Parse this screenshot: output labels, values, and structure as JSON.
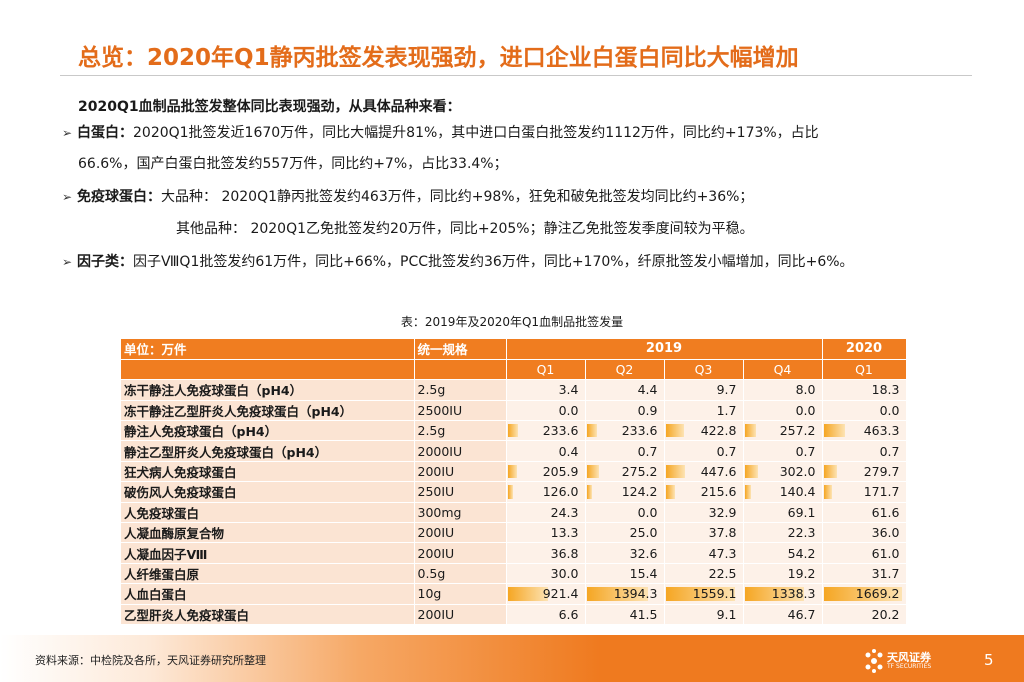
{
  "title": "总览：2020年Q1静丙批签发表现强劲，进口企业白蛋白同比大幅增加",
  "intro": "2020Q1血制品批签发整体同比表现强劲，从具体品种来看：",
  "bullets": [
    {
      "label": "白蛋白：",
      "text": "2020Q1批签发近1670万件，同比大幅提升81%，其中进口白蛋白批签发约1112万件，同比约+173%，占比",
      "cont": "66.6%，国产白蛋白批签发约557万件，同比约+7%，占比33.4%；"
    },
    {
      "label": "免疫球蛋白：",
      "text": "大品种： 2020Q1静丙批签发约463万件，同比约+98%，狂免和破免批签发均同比约+36%；",
      "cont": "其他品种： 2020Q1乙免批签发约20万件，同比+205%；静注乙免批签发季度间较为平稳。"
    },
    {
      "label": "因子类：",
      "text": "因子ⅧQ1批签发约61万件，同比+66%，PCC批签发约36万件，同比+170%，纤原批签发小幅增加，同比+6%。"
    }
  ],
  "caption": "表：2019年及2020年Q1血制品批签发量",
  "table": {
    "header": {
      "unit": "单位：万件",
      "spec": "统一规格",
      "year2019": "2019",
      "year2020": "2020",
      "quarters": [
        "Q1",
        "Q2",
        "Q3",
        "Q4",
        "Q1"
      ]
    },
    "rows": [
      {
        "name": "冻干静注人免疫球蛋白（pH4）",
        "spec": "2.5g",
        "values": [
          "3.4",
          "4.4",
          "9.7",
          "8.0",
          "18.3"
        ],
        "v": [
          3.4,
          4.4,
          9.7,
          8.0,
          18.3
        ]
      },
      {
        "name": "冻干静注乙型肝炎人免疫球蛋白（pH4）",
        "spec": "2500IU",
        "values": [
          "0.0",
          "0.9",
          "1.7",
          "0.0",
          "0.0"
        ],
        "v": [
          0.0,
          0.9,
          1.7,
          0.0,
          0.0
        ]
      },
      {
        "name": "静注人免疫球蛋白（pH4）",
        "spec": "2.5g",
        "values": [
          "233.6",
          "233.6",
          "422.8",
          "257.2",
          "463.3"
        ],
        "v": [
          233.6,
          233.6,
          422.8,
          257.2,
          463.3
        ]
      },
      {
        "name": "静注乙型肝炎人免疫球蛋白（pH4）",
        "spec": "2000IU",
        "values": [
          "0.4",
          "0.7",
          "0.7",
          "0.7",
          "0.7"
        ],
        "v": [
          0.4,
          0.7,
          0.7,
          0.7,
          0.7
        ]
      },
      {
        "name": "狂犬病人免疫球蛋白",
        "spec": "200IU",
        "values": [
          "205.9",
          "275.2",
          "447.6",
          "302.0",
          "279.7"
        ],
        "v": [
          205.9,
          275.2,
          447.6,
          302.0,
          279.7
        ]
      },
      {
        "name": "破伤风人免疫球蛋白",
        "spec": "250IU",
        "values": [
          "126.0",
          "124.2",
          "215.6",
          "140.4",
          "171.7"
        ],
        "v": [
          126.0,
          124.2,
          215.6,
          140.4,
          171.7
        ]
      },
      {
        "name": "人免疫球蛋白",
        "spec": "300mg",
        "values": [
          "24.3",
          "0.0",
          "32.9",
          "69.1",
          "61.6"
        ],
        "v": [
          24.3,
          0.0,
          32.9,
          69.1,
          61.6
        ]
      },
      {
        "name": "人凝血酶原复合物",
        "spec": "200IU",
        "values": [
          "13.3",
          "25.0",
          "37.8",
          "22.3",
          "36.0"
        ],
        "v": [
          13.3,
          25.0,
          37.8,
          22.3,
          36.0
        ]
      },
      {
        "name": "人凝血因子Ⅷ",
        "spec": "200IU",
        "values": [
          "36.8",
          "32.6",
          "47.3",
          "54.2",
          "61.0"
        ],
        "v": [
          36.8,
          32.6,
          47.3,
          54.2,
          61.0
        ]
      },
      {
        "name": "人纤维蛋白原",
        "spec": "0.5g",
        "values": [
          "30.0",
          "15.4",
          "22.5",
          "19.2",
          "31.7"
        ],
        "v": [
          30.0,
          15.4,
          22.5,
          19.2,
          31.7
        ]
      },
      {
        "name": "人血白蛋白",
        "spec": "10g",
        "values": [
          "921.4",
          "1394.3",
          "1559.1",
          "1338.3",
          "1669.2"
        ],
        "v": [
          921.4,
          1394.3,
          1559.1,
          1338.3,
          1669.2
        ]
      },
      {
        "name": "乙型肝炎人免疫球蛋白",
        "spec": "200IU",
        "values": [
          "6.6",
          "41.5",
          "9.1",
          "46.7",
          "20.2"
        ],
        "v": [
          6.6,
          41.5,
          9.1,
          46.7,
          20.2
        ]
      }
    ],
    "bar_max": 1669.2
  },
  "source": "资料来源：中检院及各所，天风证券研究所整理",
  "brand": {
    "name": "天风证券",
    "sub": "TF SECURITIES"
  },
  "page_number": "5",
  "colors": {
    "accent": "#e36c1a",
    "header_fill": "#f07d20",
    "bar": "#f5a623"
  }
}
